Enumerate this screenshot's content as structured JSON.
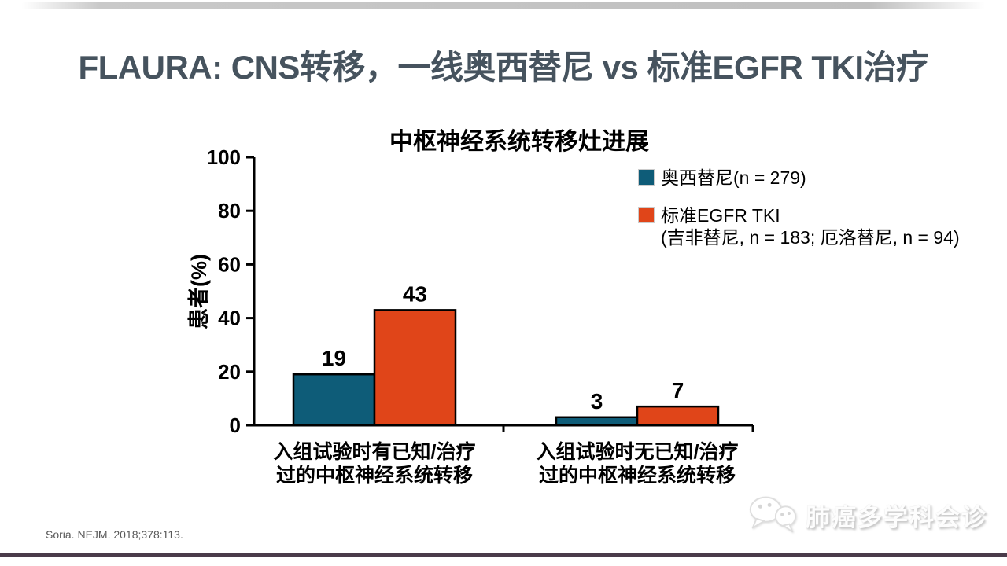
{
  "slide": {
    "title": "FLAURA: CNS转移，一线奥西替尼 vs 标准EGFR TKI治疗",
    "citation": "Soria. NEJM. 2018;378:113.",
    "watermark_text": "肺癌多学科会诊",
    "colors": {
      "title_text": "#46535E",
      "osimertinib_bar": "#0E5C78",
      "egfr_tki_bar": "#E04519",
      "bottom_rule": "#4A3B4A",
      "axis": "#000000"
    }
  },
  "chart_data": {
    "type": "bar",
    "title": "中枢神经系统转移灶进展",
    "xlabel": "",
    "ylabel": "患者(%)",
    "ylim": [
      0,
      100
    ],
    "yticks": [
      0,
      20,
      40,
      60,
      80,
      100
    ],
    "grid": false,
    "legend_position": "right",
    "categories": [
      [
        "入组试验时有已知/治疗",
        "过的中枢神经系统转移"
      ],
      [
        "入组试验时无已知/治疗",
        "过的中枢神经系统转移"
      ]
    ],
    "series": [
      {
        "name": "奥西替尼(n = 279)",
        "legend_lines": [
          "奥西替尼(n = 279)"
        ],
        "color": "#0E5C78",
        "values": [
          19,
          3
        ]
      },
      {
        "name": "标准EGFR TKI (吉非替尼, n = 183; 厄洛替尼, n = 94)",
        "legend_lines": [
          "标准EGFR TKI",
          "(吉非替尼, n = 183; 厄洛替尼, n = 94)"
        ],
        "color": "#E04519",
        "values": [
          43,
          7
        ]
      }
    ]
  }
}
